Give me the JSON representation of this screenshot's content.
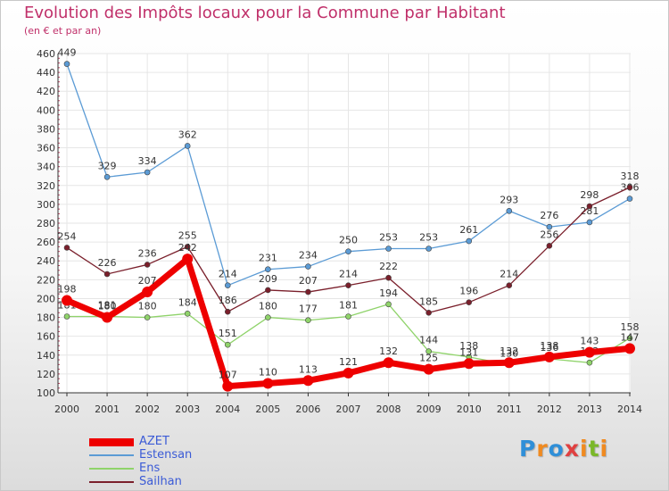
{
  "title": "Evolution des Impôts locaux pour la Commune par Habitant",
  "subtitle": "(en € et par an)",
  "logo": {
    "text": "Proxiti",
    "letter_colors": [
      "#2f8fd8",
      "#f08a20",
      "#2f8fd8",
      "#e04040",
      "#f08a20",
      "#7ab828",
      "#f08a20"
    ]
  },
  "chart_data": {
    "type": "line",
    "x": [
      "2000",
      "2001",
      "2002",
      "2003",
      "2004",
      "2005",
      "2006",
      "2007",
      "2008",
      "2009",
      "2010",
      "2011",
      "2012",
      "2013",
      "2014"
    ],
    "ylim": [
      100,
      460
    ],
    "yticks": [
      "100",
      "120",
      "140",
      "160",
      "180",
      "200",
      "220",
      "240",
      "260",
      "280",
      "300",
      "320",
      "340",
      "360",
      "380",
      "400",
      "420",
      "440",
      "460"
    ],
    "grid": true,
    "legend_position": "bottom-left",
    "series": [
      {
        "name": "Estensan",
        "color": "#5b9bd5",
        "values": [
          449,
          329,
          334,
          362,
          214,
          231,
          234,
          250,
          253,
          253,
          261,
          293,
          276,
          281,
          306
        ],
        "labels": [
          "449",
          "329",
          "334",
          "362",
          "214",
          "231",
          "234",
          "250",
          "253",
          "253",
          "261",
          "293",
          "276",
          "281",
          "306"
        ]
      },
      {
        "name": "Sailhan",
        "color": "#7a1f2b",
        "values": [
          254,
          226,
          236,
          255,
          186,
          209,
          207,
          214,
          222,
          185,
          196,
          214,
          256,
          298,
          318
        ],
        "labels": [
          "254",
          "226",
          "236",
          "255",
          "186",
          "209",
          "207",
          "214",
          "222",
          "185",
          "196",
          "214",
          "256",
          "298",
          "318"
        ]
      },
      {
        "name": "Ens",
        "color": "#8fd36a",
        "values": [
          181,
          181,
          180,
          184,
          151,
          180,
          177,
          181,
          194,
          144,
          138,
          130,
          136,
          132,
          158
        ],
        "labels": [
          "181",
          "181",
          "180",
          "184",
          "151",
          "180",
          "177",
          "181",
          "194",
          "144",
          "138",
          "130",
          "136",
          "132",
          "158"
        ]
      },
      {
        "name": "AZET",
        "color": "#ee0000",
        "values": [
          198,
          180,
          207,
          242,
          107,
          110,
          113,
          121,
          132,
          125,
          131,
          132,
          138,
          143,
          147
        ],
        "labels": [
          "198",
          "180",
          "207",
          "242",
          "107",
          "110",
          "113",
          "121",
          "132",
          "125",
          "131",
          "132",
          "138",
          "143",
          "147"
        ]
      }
    ],
    "legend": [
      {
        "name": "AZET",
        "color": "#ee0000"
      },
      {
        "name": "Estensan",
        "color": "#5b9bd5"
      },
      {
        "name": "Ens",
        "color": "#8fd36a"
      },
      {
        "name": "Sailhan",
        "color": "#7a1f2b"
      }
    ]
  }
}
